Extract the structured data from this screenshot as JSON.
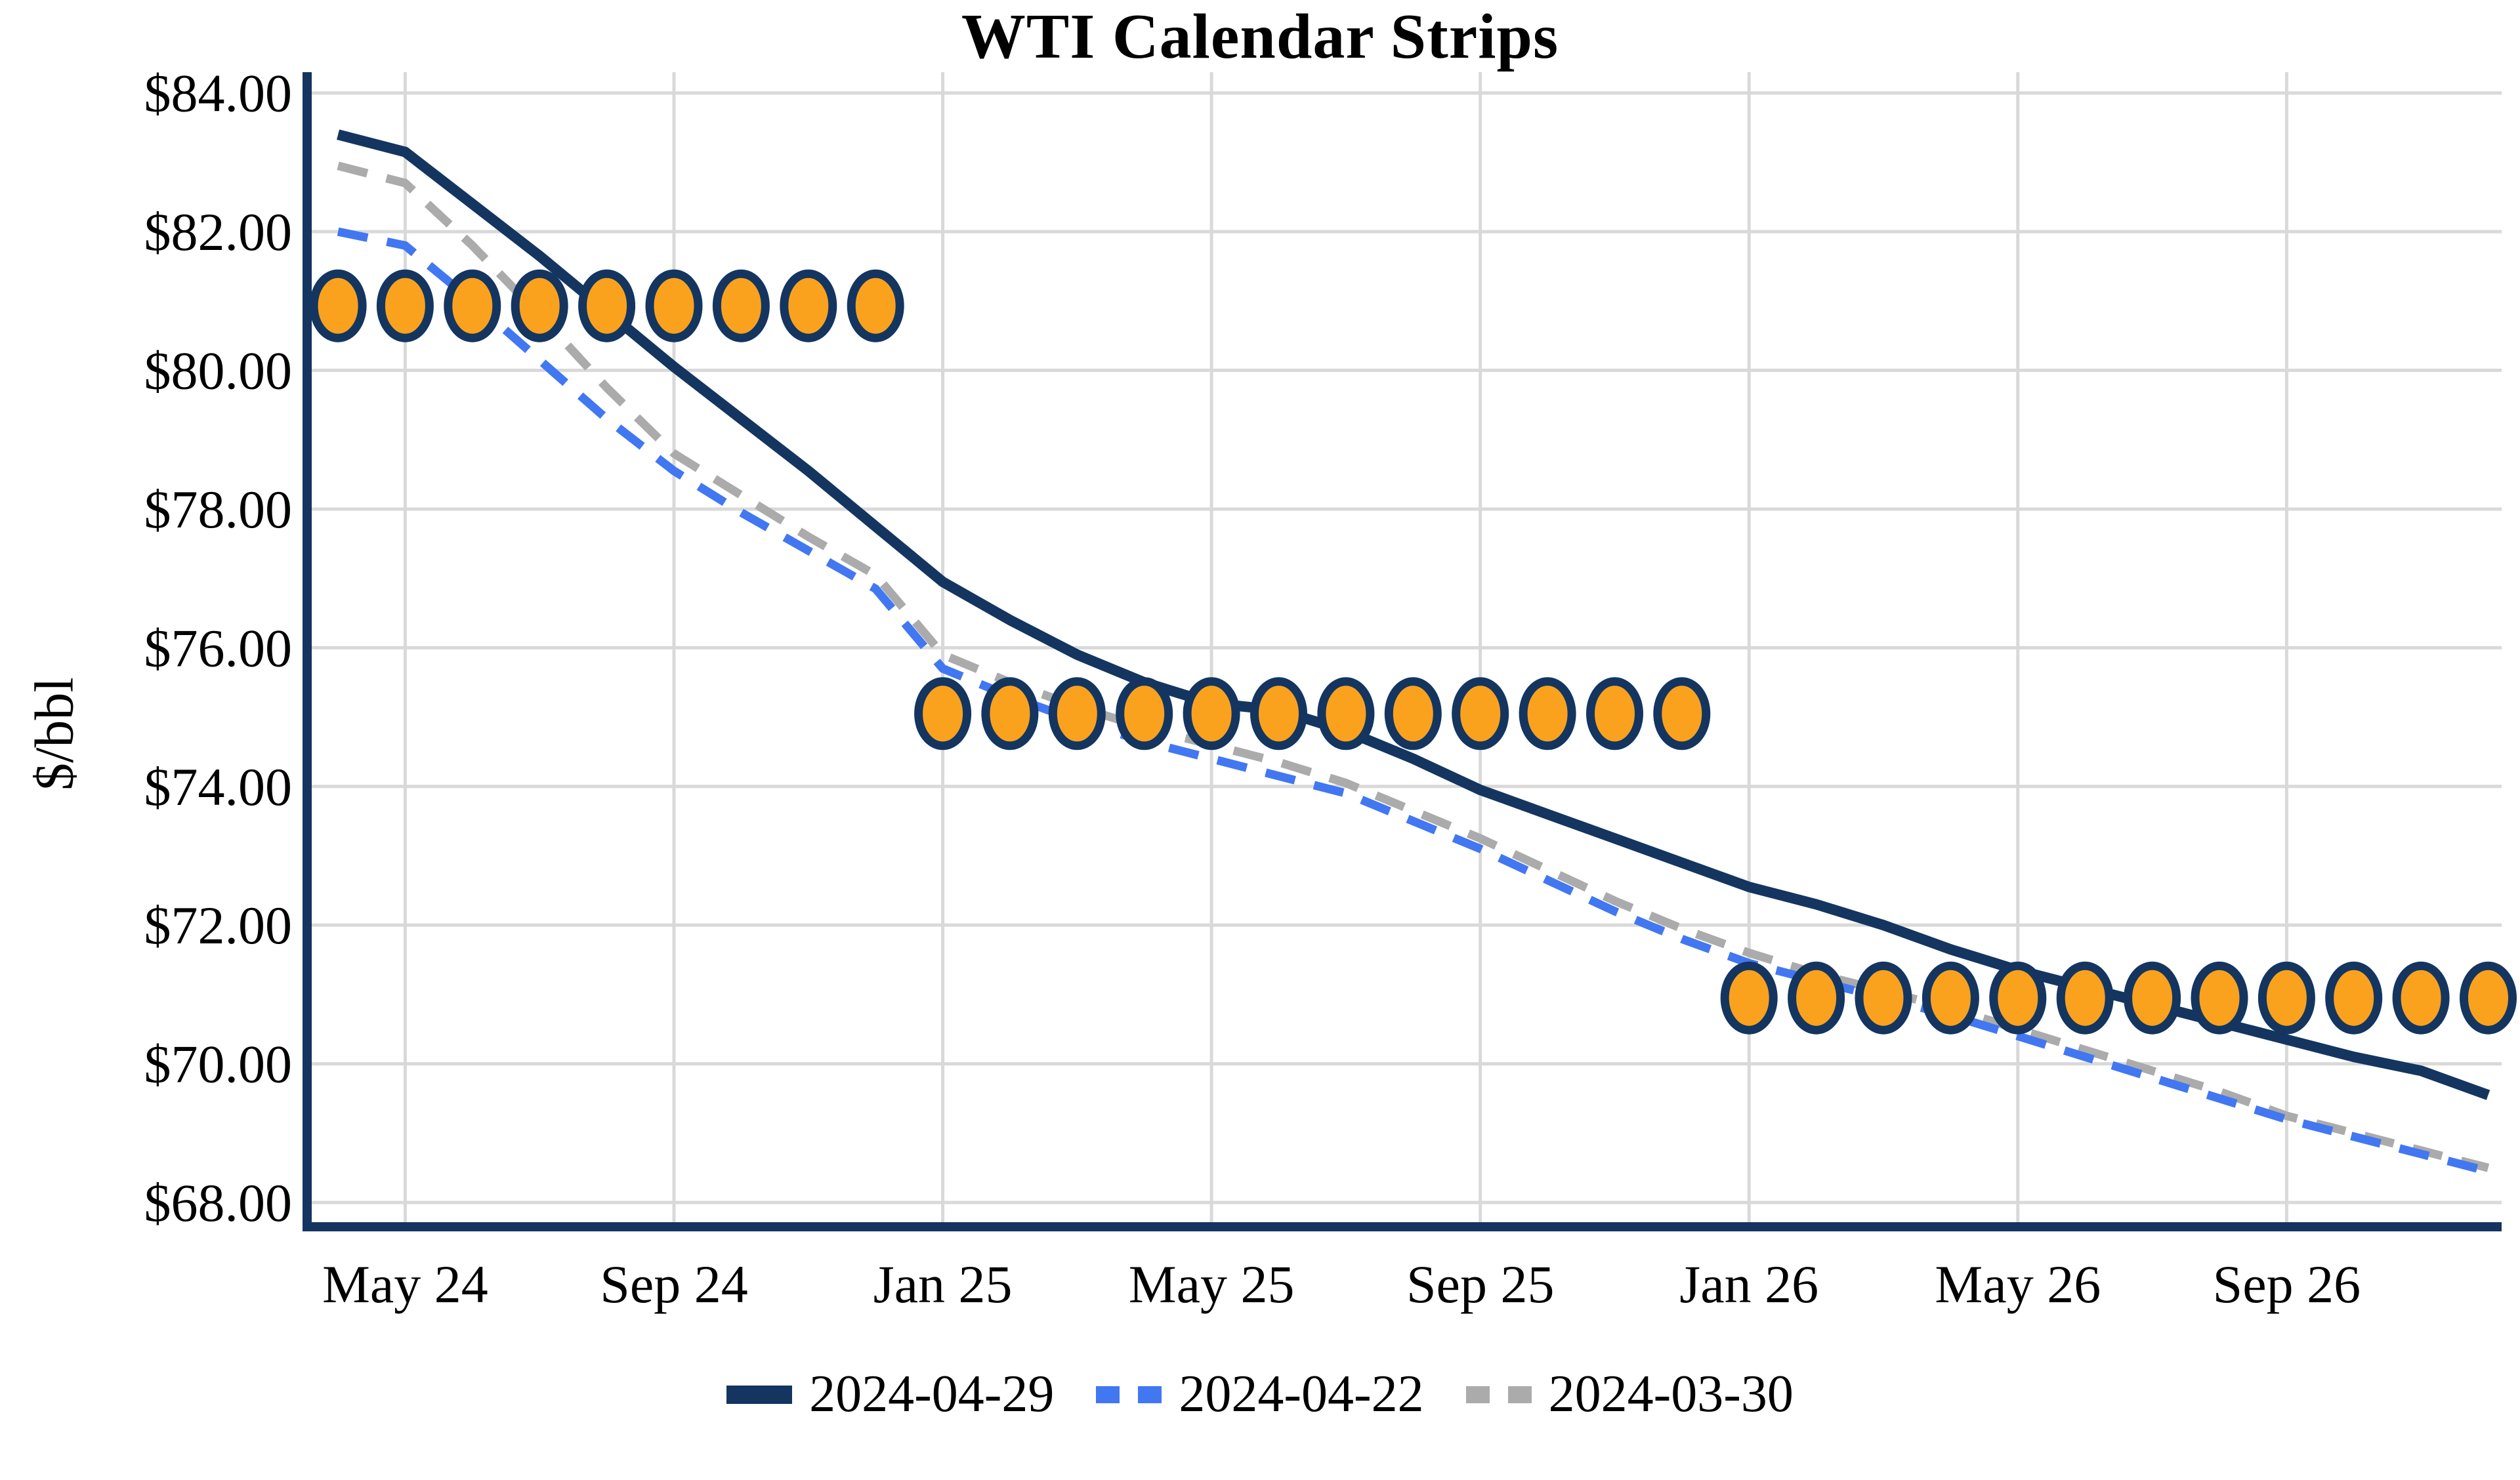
{
  "chart_data": {
    "type": "line",
    "title": "WTI Calendar Strips",
    "ylabel": "$/bbl",
    "grid": true,
    "legend_position": "bottom",
    "background_color": "#FFFFFF",
    "grid_color": "#D9D9D9",
    "axis_color": "#14355F",
    "text_color": "#000000",
    "ylim": [
      67.65,
      84.3
    ],
    "xlim_index": [
      -0.44,
      32.2
    ],
    "y_tick_values": [
      84,
      82,
      80,
      78,
      76,
      74,
      72,
      70,
      68
    ],
    "y_tick_labels": [
      "$84.00",
      "$82.00",
      "$80.00",
      "$78.00",
      "$76.00",
      "$74.00",
      "$72.00",
      "$70.00",
      "$68.00"
    ],
    "x_tick_indices": [
      1,
      5,
      9,
      13,
      17,
      21,
      25,
      29
    ],
    "x_tick_labels": [
      "May 24",
      "Sep 24",
      "Jan 25",
      "May 25",
      "Sep 25",
      "Jan 26",
      "May 26",
      "Sep 26"
    ],
    "months": [
      "Apr 24",
      "May 24",
      "Jun 24",
      "Jul 24",
      "Aug 24",
      "Sep 24",
      "Oct 24",
      "Nov 24",
      "Dec 24",
      "Jan 25",
      "Feb 25",
      "Mar 25",
      "Apr 25",
      "May 25",
      "Jun 25",
      "Jul 25",
      "Aug 25",
      "Sep 25",
      "Oct 25",
      "Nov 25",
      "Dec 25",
      "Jan 26",
      "Feb 26",
      "Mar 26",
      "Apr 26",
      "May 26",
      "Jun 26",
      "Jul 26",
      "Aug 26",
      "Sep 26",
      "Oct 26",
      "Nov 26",
      "Dec 26"
    ],
    "series": [
      {
        "name": "2024-04-29",
        "color": "#14355F",
        "style": "solid",
        "width": 16,
        "values": [
          83.4,
          83.15,
          82.4,
          81.65,
          80.85,
          80.05,
          79.3,
          78.55,
          77.75,
          76.95,
          76.4,
          75.9,
          75.5,
          75.2,
          75.1,
          74.8,
          74.4,
          73.95,
          73.6,
          73.25,
          72.9,
          72.55,
          72.3,
          72.0,
          71.65,
          71.35,
          71.1,
          70.85,
          70.6,
          70.35,
          70.1,
          69.9,
          69.55
        ]
      },
      {
        "name": "2024-04-22",
        "color": "#4277F2",
        "style": "dashed",
        "width": 13,
        "values": [
          82.0,
          81.8,
          81.0,
          80.15,
          79.3,
          78.55,
          77.95,
          77.4,
          76.85,
          75.7,
          75.3,
          74.95,
          74.65,
          74.4,
          74.15,
          73.9,
          73.5,
          73.1,
          72.65,
          72.2,
          71.8,
          71.45,
          71.2,
          70.95,
          70.7,
          70.4,
          70.1,
          69.8,
          69.5,
          69.2,
          68.95,
          68.7,
          68.45
        ]
      },
      {
        "name": "2024-03-30",
        "color": "#ABABAB",
        "style": "dashed",
        "width": 13,
        "values": [
          82.95,
          82.7,
          81.8,
          80.8,
          79.75,
          78.8,
          78.2,
          77.6,
          77.05,
          75.9,
          75.5,
          75.15,
          74.85,
          74.6,
          74.35,
          74.05,
          73.65,
          73.25,
          72.8,
          72.35,
          71.95,
          71.6,
          71.3,
          71.05,
          70.8,
          70.5,
          70.2,
          69.9,
          69.6,
          69.25,
          69.0,
          68.75,
          68.5
        ]
      }
    ],
    "markers": {
      "fill": "#FAA21E",
      "stroke": "#14355F",
      "groups": [
        {
          "start_index": 0,
          "end_index": 8,
          "value": 80.93
        },
        {
          "start_index": 9,
          "end_index": 20,
          "value": 75.05
        },
        {
          "start_index": 21,
          "end_index": 32,
          "value": 70.95
        }
      ]
    }
  }
}
